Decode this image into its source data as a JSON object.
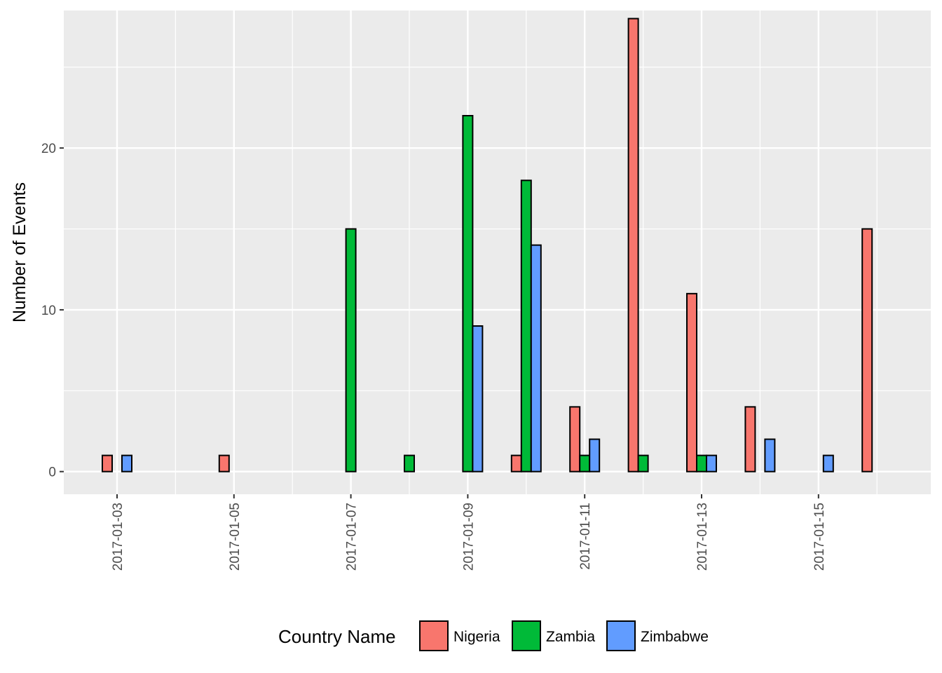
{
  "chart_data": {
    "type": "bar",
    "title": "",
    "xlabel": "",
    "ylabel": "Number of Events",
    "ylim": [
      -1.4,
      28.5
    ],
    "yticks": [
      0,
      10,
      20
    ],
    "categories": [
      "2017-01-03",
      "2017-01-04",
      "2017-01-05",
      "2017-01-06",
      "2017-01-07",
      "2017-01-08",
      "2017-01-09",
      "2017-01-10",
      "2017-01-11",
      "2017-01-12",
      "2017-01-13",
      "2017-01-14",
      "2017-01-15",
      "2017-01-16"
    ],
    "xtick_labels": [
      "2017-01-03",
      "2017-01-05",
      "2017-01-07",
      "2017-01-09",
      "2017-01-11",
      "2017-01-13",
      "2017-01-15"
    ],
    "grid": true,
    "legend": {
      "title": "Country Name",
      "position": "bottom"
    },
    "series": [
      {
        "name": "Nigeria",
        "color": "#F8766D",
        "values": [
          1,
          0,
          1,
          0,
          0,
          0,
          0,
          1,
          4,
          28,
          11,
          4,
          0,
          15
        ]
      },
      {
        "name": "Zambia",
        "color": "#00BA38",
        "values": [
          0,
          0,
          0,
          0,
          15,
          1,
          22,
          18,
          1,
          1,
          1,
          0,
          0,
          0
        ]
      },
      {
        "name": "Zimbabwe",
        "color": "#619CFF",
        "values": [
          1,
          0,
          0,
          0,
          0,
          0,
          9,
          14,
          2,
          0,
          1,
          2,
          1,
          0
        ]
      }
    ]
  }
}
